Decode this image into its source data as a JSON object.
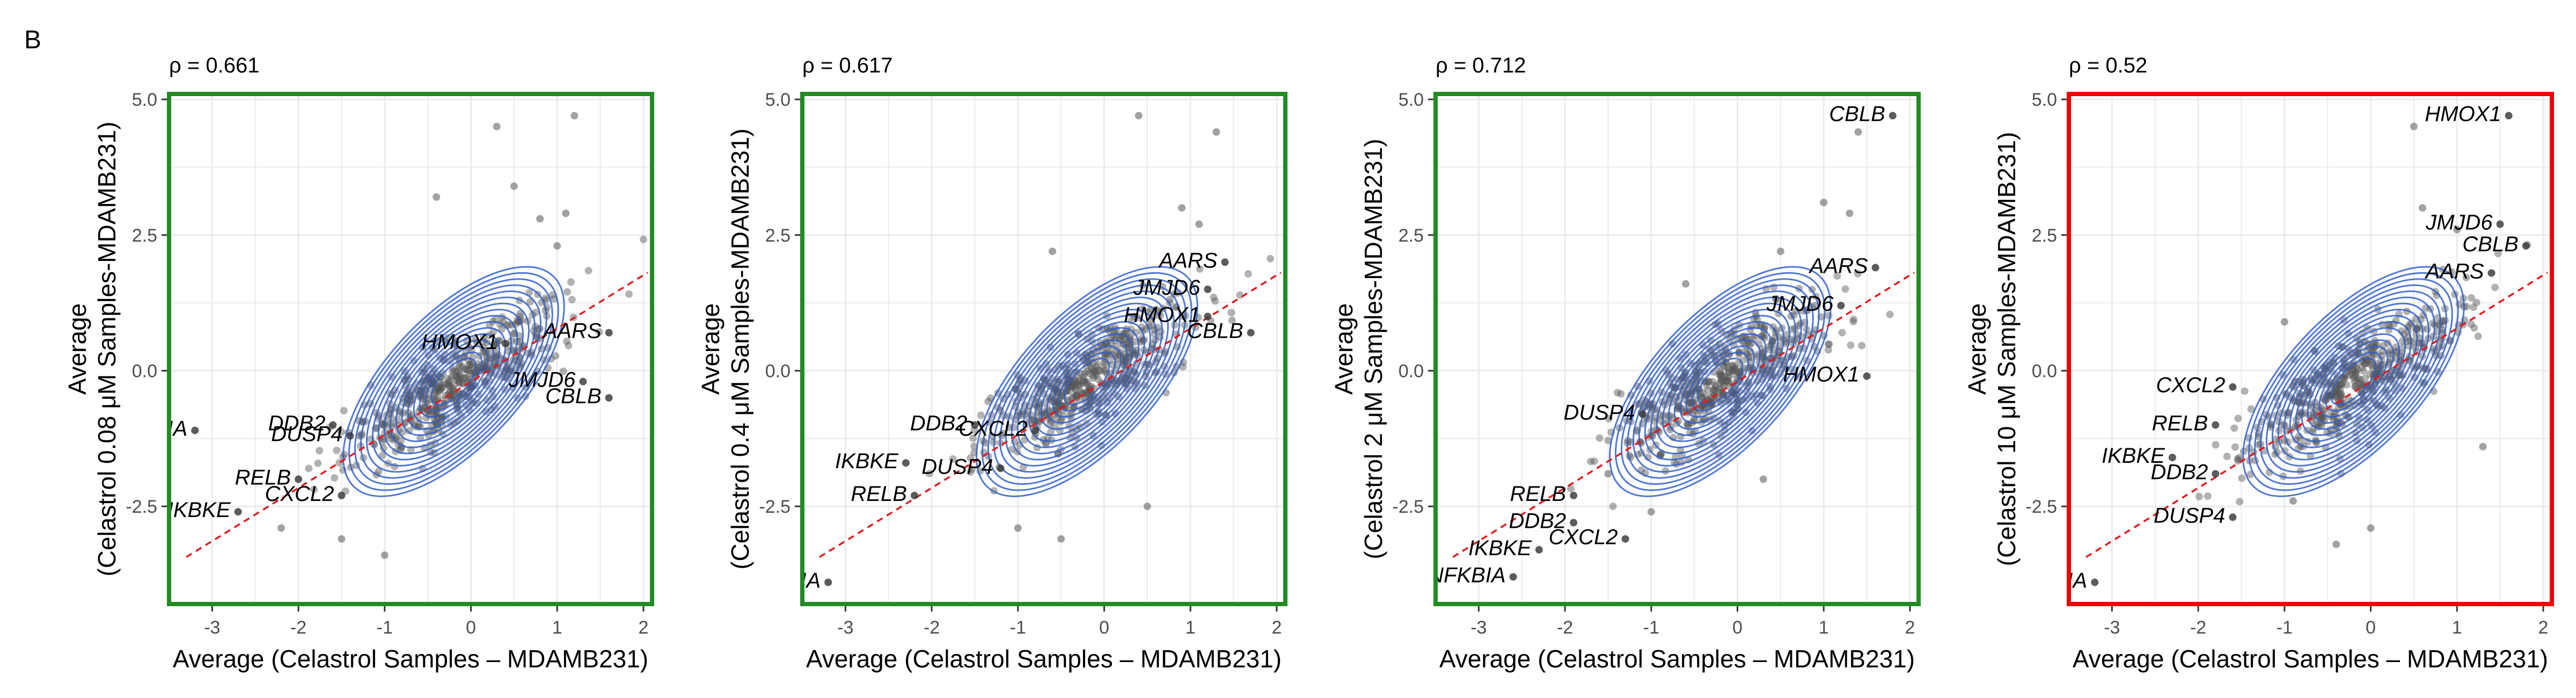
{
  "figure": {
    "panel_letter": "B",
    "colors": {
      "frame_pass": "#228B22",
      "frame_fail": "#EE0000",
      "points": "#555555",
      "contours": "#2F5FD0",
      "regression": "#E31A1C",
      "grid": "#EBEBEB"
    }
  },
  "chart_data": [
    {
      "type": "scatter",
      "title": "ρ = 0.661",
      "xlabel": "Average (Celastrol Samples – MDAMB231)",
      "ylabel": [
        "Average",
        "(Celastrol 0.08 μM Samples-MDAMB231)"
      ],
      "xlim": [
        -3.5,
        2.1
      ],
      "ylim": [
        -4.3,
        5.1
      ],
      "xticks": [
        -3,
        -2,
        -1,
        0,
        1,
        2
      ],
      "xtick_labels": [
        "-3",
        "-2",
        "-1",
        "0",
        "1",
        "2"
      ],
      "yticks": [
        -2.5,
        0,
        2.5,
        5
      ],
      "ytick_labels": [
        "-2.5",
        "0.0",
        "2.5",
        "5.0"
      ],
      "frame_color": "green",
      "regression_line": {
        "slope": 0.98,
        "intercept": -0.2
      },
      "contour_center": [
        -0.2,
        -0.2
      ],
      "labels": [
        {
          "text": "HMOX1",
          "x": 0.4,
          "y": 0.5
        },
        {
          "text": "AARS",
          "x": 1.6,
          "y": 0.7
        },
        {
          "text": "JMJD6",
          "x": 1.3,
          "y": -0.2
        },
        {
          "text": "CBLB",
          "x": 1.6,
          "y": -0.5
        },
        {
          "text": "DDB2",
          "x": -1.6,
          "y": -1.0
        },
        {
          "text": "DUSP4",
          "x": -1.4,
          "y": -1.2
        },
        {
          "text": "NFKBIA",
          "x": -3.2,
          "y": -1.1
        },
        {
          "text": "RELB",
          "x": -2.0,
          "y": -2.0
        },
        {
          "text": "CXCL2",
          "x": -1.5,
          "y": -2.3
        },
        {
          "text": "IKBKE",
          "x": -2.7,
          "y": -2.6
        }
      ],
      "outliers": [
        [
          0.3,
          4.5
        ],
        [
          1.2,
          4.7
        ],
        [
          -0.4,
          3.2
        ],
        [
          0.5,
          3.4
        ],
        [
          0.8,
          2.8
        ],
        [
          1.0,
          2.3
        ],
        [
          1.1,
          2.9
        ],
        [
          -1.0,
          -3.4
        ],
        [
          -1.5,
          -3.1
        ],
        [
          -2.2,
          -2.9
        ]
      ]
    },
    {
      "type": "scatter",
      "title": "ρ = 0.617",
      "xlabel": "Average (Celastrol Samples – MDAMB231)",
      "ylabel": [
        "Average",
        "(Celastrol 0.4 μM Samples-MDAMB231)"
      ],
      "xlim": [
        -3.5,
        2.1
      ],
      "ylim": [
        -4.3,
        5.1
      ],
      "xticks": [
        -3,
        -2,
        -1,
        0,
        1,
        2
      ],
      "xtick_labels": [
        "-3",
        "-2",
        "-1",
        "0",
        "1",
        "2"
      ],
      "yticks": [
        -2.5,
        0,
        2.5,
        5
      ],
      "ytick_labels": [
        "-2.5",
        "0.0",
        "2.5",
        "5.0"
      ],
      "frame_color": "green",
      "regression_line": {
        "slope": 0.98,
        "intercept": -0.2
      },
      "contour_center": [
        -0.2,
        -0.2
      ],
      "labels": [
        {
          "text": "AARS",
          "x": 1.4,
          "y": 2.0
        },
        {
          "text": "JMJD6",
          "x": 1.2,
          "y": 1.5
        },
        {
          "text": "HMOX1",
          "x": 1.2,
          "y": 1.0
        },
        {
          "text": "CBLB",
          "x": 1.7,
          "y": 0.7
        },
        {
          "text": "DDB2",
          "x": -1.5,
          "y": -1.0
        },
        {
          "text": "CXCL2",
          "x": -0.8,
          "y": -1.1
        },
        {
          "text": "IKBKE",
          "x": -2.3,
          "y": -1.7
        },
        {
          "text": "DUSP4",
          "x": -1.2,
          "y": -1.8
        },
        {
          "text": "RELB",
          "x": -2.2,
          "y": -2.3
        },
        {
          "text": "NFKBIA",
          "x": -3.2,
          "y": -3.9
        }
      ],
      "outliers": [
        [
          0.4,
          4.7
        ],
        [
          1.3,
          4.4
        ],
        [
          0.9,
          3.0
        ],
        [
          1.1,
          2.7
        ],
        [
          -0.6,
          2.2
        ],
        [
          -1.0,
          -2.9
        ],
        [
          -0.5,
          -3.1
        ],
        [
          0.5,
          -2.5
        ]
      ]
    },
    {
      "type": "scatter",
      "title": "ρ = 0.712",
      "xlabel": "Average (Celastrol Samples – MDAMB231)",
      "ylabel": [
        "Average",
        "(Celastrol 2 μM Samples-MDAMB231)"
      ],
      "xlim": [
        -3.5,
        2.1
      ],
      "ylim": [
        -4.3,
        5.1
      ],
      "xticks": [
        -3,
        -2,
        -1,
        0,
        1,
        2
      ],
      "xtick_labels": [
        "-3",
        "-2",
        "-1",
        "0",
        "1",
        "2"
      ],
      "yticks": [
        -2.5,
        0,
        2.5,
        5
      ],
      "ytick_labels": [
        "-2.5",
        "0.0",
        "2.5",
        "5.0"
      ],
      "frame_color": "green",
      "regression_line": {
        "slope": 0.98,
        "intercept": -0.2
      },
      "contour_center": [
        -0.2,
        -0.2
      ],
      "labels": [
        {
          "text": "CBLB",
          "x": 1.8,
          "y": 4.7
        },
        {
          "text": "AARS",
          "x": 1.6,
          "y": 1.9
        },
        {
          "text": "JMJD6",
          "x": 1.2,
          "y": 1.2
        },
        {
          "text": "HMOX1",
          "x": 1.5,
          "y": -0.1
        },
        {
          "text": "DUSP4",
          "x": -1.1,
          "y": -0.8
        },
        {
          "text": "RELB",
          "x": -1.9,
          "y": -2.3
        },
        {
          "text": "DDB2",
          "x": -1.9,
          "y": -2.8
        },
        {
          "text": "CXCL2",
          "x": -1.3,
          "y": -3.1
        },
        {
          "text": "IKBKE",
          "x": -2.3,
          "y": -3.3
        },
        {
          "text": "NFKBIA",
          "x": -2.6,
          "y": -3.8
        }
      ],
      "outliers": [
        [
          1.4,
          4.4
        ],
        [
          1.0,
          3.1
        ],
        [
          1.3,
          2.9
        ],
        [
          0.5,
          2.2
        ],
        [
          -0.6,
          1.6
        ],
        [
          -1.5,
          -1.9
        ],
        [
          -1.0,
          -2.6
        ],
        [
          0.3,
          -2.0
        ]
      ]
    },
    {
      "type": "scatter",
      "title": "ρ = 0.52",
      "xlabel": "Average (Celastrol Samples – MDAMB231)",
      "ylabel": [
        "Average",
        "(Celastrol 10 μM Samples-MDAMB231)"
      ],
      "xlim": [
        -3.5,
        2.1
      ],
      "ylim": [
        -4.3,
        5.1
      ],
      "xticks": [
        -3,
        -2,
        -1,
        0,
        1,
        2
      ],
      "xtick_labels": [
        "-3",
        "-2",
        "-1",
        "0",
        "1",
        "2"
      ],
      "yticks": [
        -2.5,
        0,
        2.5,
        5
      ],
      "ytick_labels": [
        "-2.5",
        "0.0",
        "2.5",
        "5.0"
      ],
      "frame_color": "red",
      "regression_line": {
        "slope": 0.98,
        "intercept": -0.2
      },
      "contour_center": [
        -0.2,
        -0.2
      ],
      "labels": [
        {
          "text": "HMOX1",
          "x": 1.6,
          "y": 4.7
        },
        {
          "text": "JMJD6",
          "x": 1.5,
          "y": 2.7
        },
        {
          "text": "CBLB",
          "x": 1.8,
          "y": 2.3
        },
        {
          "text": "AARS",
          "x": 1.4,
          "y": 1.8
        },
        {
          "text": "CXCL2",
          "x": -1.6,
          "y": -0.3
        },
        {
          "text": "RELB",
          "x": -1.8,
          "y": -1.0
        },
        {
          "text": "IKBKE",
          "x": -2.3,
          "y": -1.6
        },
        {
          "text": "DDB2",
          "x": -1.8,
          "y": -1.9
        },
        {
          "text": "DUSP4",
          "x": -1.6,
          "y": -2.7
        },
        {
          "text": "NFKBIA",
          "x": -3.2,
          "y": -3.9
        }
      ],
      "outliers": [
        [
          0.5,
          4.5
        ],
        [
          0.6,
          3.0
        ],
        [
          1.0,
          2.6
        ],
        [
          -1.0,
          0.9
        ],
        [
          -0.9,
          -2.4
        ],
        [
          -0.4,
          -3.2
        ],
        [
          1.3,
          -1.4
        ],
        [
          0.0,
          -2.9
        ]
      ]
    }
  ]
}
